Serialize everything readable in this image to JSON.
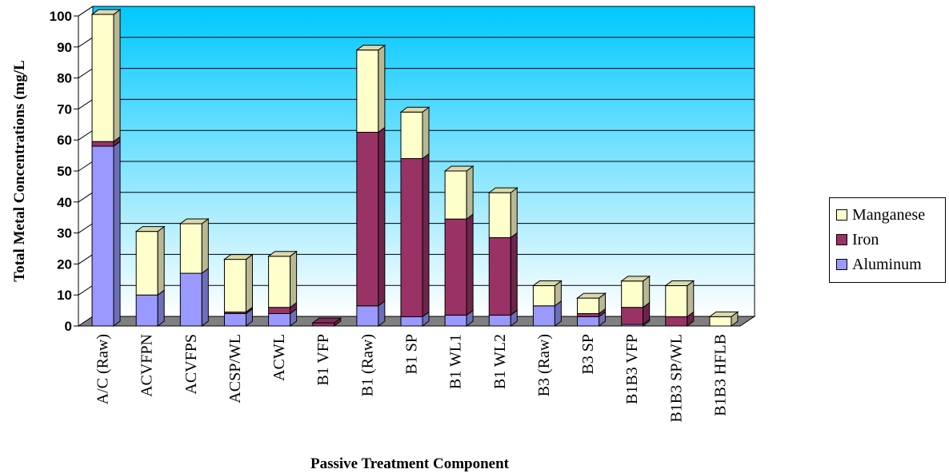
{
  "chart_data": {
    "type": "bar",
    "stacked": true,
    "three_d": true,
    "title": "",
    "xlabel": "Passive Treatment Component",
    "ylabel": "Total Metal Concentrations (mg/L",
    "ylim": [
      0,
      100
    ],
    "yticks": [
      0,
      10,
      20,
      30,
      40,
      50,
      60,
      70,
      80,
      90,
      100
    ],
    "grid": true,
    "legend_position": "right",
    "categories": [
      "A/C (Raw)",
      "ACVFPN",
      "ACVFPS",
      "ACSP/WL",
      "ACWL",
      "B1 VFP",
      "B1 (Raw)",
      "B1 SP",
      "B1 WL1",
      "B1 WL2",
      "B3 (Raw)",
      "B3 SP",
      "B1B3 VFP",
      "B1B3 SP/WL",
      "B1B3 HFLB"
    ],
    "series": [
      {
        "name": "Aluminum",
        "color": "#9999ff",
        "values": [
          58,
          10,
          17,
          4,
          4,
          0,
          6.5,
          3,
          3.5,
          3.5,
          6.5,
          3,
          0.5,
          0,
          0
        ]
      },
      {
        "name": "Iron",
        "color": "#993366",
        "values": [
          1.5,
          0,
          0,
          0.5,
          2,
          1,
          56,
          51,
          31,
          25,
          0,
          1,
          5.5,
          3,
          0
        ]
      },
      {
        "name": "Manganese",
        "color": "#ffffcc",
        "values": [
          41,
          20.5,
          16,
          17,
          16.5,
          0,
          26.5,
          15,
          15.5,
          14.5,
          6.5,
          5,
          8.5,
          10,
          3
        ]
      }
    ],
    "legend_order": [
      "Manganese",
      "Iron",
      "Aluminum"
    ]
  }
}
